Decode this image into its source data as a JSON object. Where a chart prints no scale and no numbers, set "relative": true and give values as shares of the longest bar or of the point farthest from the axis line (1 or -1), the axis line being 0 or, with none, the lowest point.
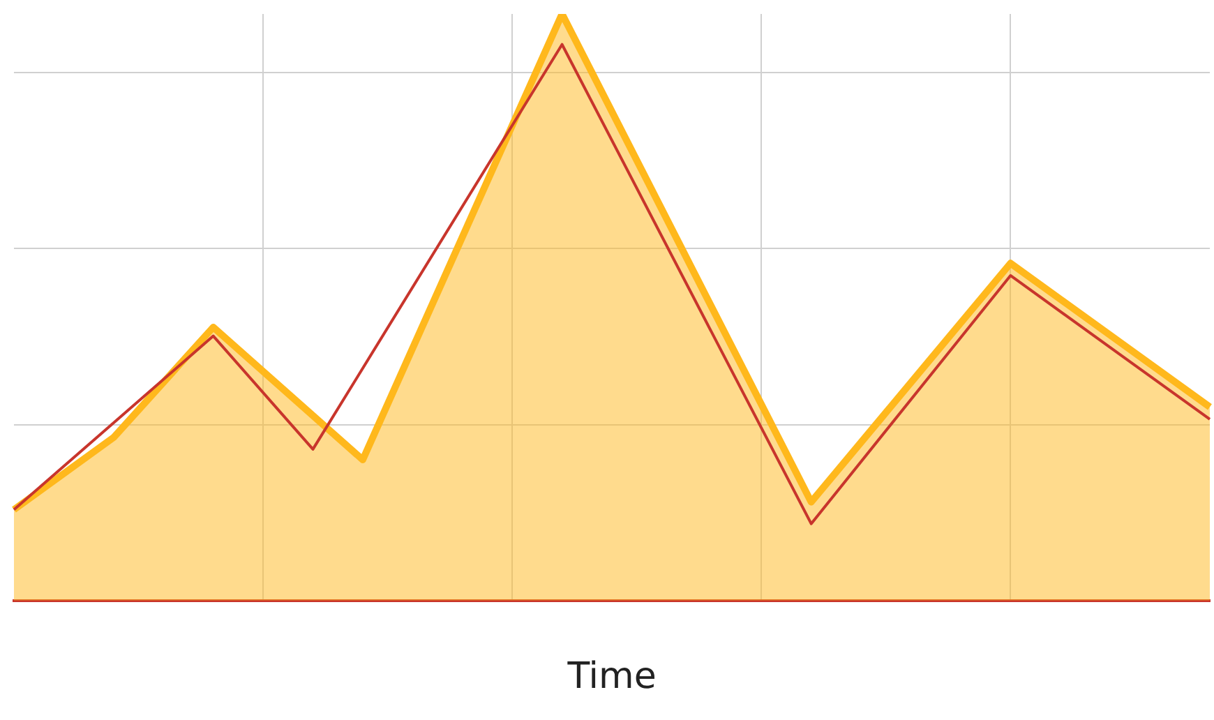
{
  "chart_data": {
    "type": "area",
    "xlabel": "Time",
    "relative": true,
    "grid": true,
    "legend": false,
    "categories": [
      null,
      null,
      null,
      null,
      null,
      null,
      null,
      null,
      null,
      null,
      null,
      null,
      null,
      null,
      null,
      null,
      null,
      null,
      null,
      null,
      null,
      null,
      null,
      null,
      null
    ],
    "series": [
      {
        "type": "area",
        "color": "#ffb81c",
        "values": [
          0.155,
          null,
          0.278,
          null,
          0.466,
          null,
          null,
          0.24,
          null,
          null,
          null,
          1,
          null,
          null,
          null,
          null,
          0.168,
          null,
          null,
          null,
          0.575,
          null,
          null,
          null,
          0.33
        ]
      },
      {
        "type": "line",
        "color": "#c8352c",
        "values": [
          0.155,
          null,
          null,
          null,
          0.451,
          null,
          0.258,
          null,
          null,
          null,
          null,
          0.948,
          null,
          null,
          null,
          null,
          0.131,
          null,
          null,
          null,
          0.554,
          null,
          null,
          null,
          0.309
        ]
      }
    ]
  }
}
